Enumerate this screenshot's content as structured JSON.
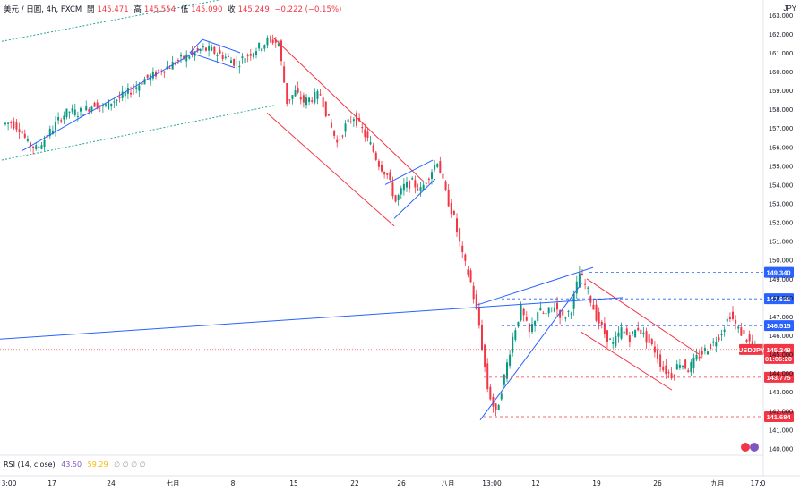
{
  "header": {
    "symbol": "美元 / 日圓, 4h, FXCM",
    "o_label": "開",
    "o_value": "145.471",
    "h_label": "高",
    "h_value": "145.554",
    "l_label": "低",
    "l_value": "145.090",
    "c_label": "收",
    "c_value": "145.249",
    "change": "−0.222 (−0.15%)"
  },
  "currency": "JPY",
  "rsi": {
    "label": "RSI (14, close)",
    "value": "43.50",
    "ma_value": "59.29",
    "empties": "∅ ∅ ∅ ∅"
  },
  "price_tags": {
    "symbol_tag": "USDJPY",
    "last": "145.249",
    "countdown": "01:06:20",
    "levels": [
      {
        "text": "149.340",
        "price": 149.34,
        "color": "#2962ff"
      },
      {
        "text": "147.938",
        "price": 147.938,
        "color": "#2962ff"
      },
      {
        "text": "146.515",
        "price": 146.515,
        "color": "#2962ff"
      },
      {
        "text": "143.775",
        "price": 143.775,
        "color": "#f23645"
      },
      {
        "text": "141.684",
        "price": 141.684,
        "color": "#f23645"
      }
    ]
  },
  "colors": {
    "up": "#089981",
    "down": "#f23645",
    "line": "#2962ff",
    "channel": "#f23645",
    "guide": "#26a69a"
  },
  "chart_data": {
    "type": "candlestick",
    "ylim": [
      139.5,
      163.7
    ],
    "yticks": [
      "163.000",
      "162.000",
      "161.000",
      "160.000",
      "159.000",
      "158.000",
      "157.000",
      "156.000",
      "155.000",
      "154.000",
      "153.000",
      "152.000",
      "151.000",
      "150.000",
      "149.000",
      "148.000",
      "147.000",
      "146.000",
      "145.000",
      "144.000",
      "143.000",
      "142.000",
      "141.000",
      "140.000"
    ],
    "xticks": [
      "3:00",
      "17",
      "24",
      "七月",
      "8",
      "15",
      "22",
      "26",
      "八月",
      "13:00",
      "12",
      "19",
      "26",
      "九月",
      "17:0"
    ],
    "price_path": [
      157.2,
      157.3,
      157.0,
      156.2,
      155.9,
      156.4,
      157.0,
      157.6,
      157.9,
      157.8,
      158.0,
      158.3,
      158.1,
      158.4,
      158.6,
      158.9,
      159.2,
      159.6,
      159.8,
      160.1,
      160.3,
      160.6,
      160.8,
      161.0,
      161.2,
      161.1,
      160.9,
      160.7,
      160.4,
      160.8,
      161.1,
      161.4,
      161.7,
      161.5,
      158.4,
      158.9,
      158.4,
      158.6,
      158.8,
      157.4,
      156.2,
      157.1,
      157.6,
      156.9,
      156.1,
      155.1,
      154.5,
      153.1,
      153.9,
      154.1,
      153.7,
      154.5,
      155.3,
      153.5,
      152.2,
      150.2,
      148.8,
      146.5,
      143.2,
      141.8,
      143.8,
      145.9,
      147.4,
      146.1,
      147.3,
      147.1,
      147.6,
      146.9,
      147.4,
      149.3,
      148.3,
      147.0,
      146.1,
      145.5,
      146.3,
      145.9,
      146.4,
      145.8,
      145.2,
      144.2,
      143.9,
      144.6,
      144.2,
      144.8,
      145.2,
      145.6,
      146.2,
      147.1,
      146.3,
      145.8,
      145.25
    ],
    "lines": [
      {
        "kind": "trend",
        "color": "#2962ff",
        "from": [
          1,
          155.7
        ],
        "to": [
          19,
          161.2
        ]
      },
      {
        "kind": "trend",
        "color": "#2962ff",
        "from": [
          0,
          145.7
        ],
        "to": [
          82,
          148.0
        ]
      },
      {
        "kind": "trend",
        "color": "#2962ff",
        "from": [
          62,
          141.5
        ],
        "to": [
          76,
          149.5
        ]
      },
      {
        "kind": "trend",
        "color": "#2962ff",
        "from": [
          62,
          148.0
        ],
        "to": [
          76,
          149.6
        ]
      }
    ]
  }
}
